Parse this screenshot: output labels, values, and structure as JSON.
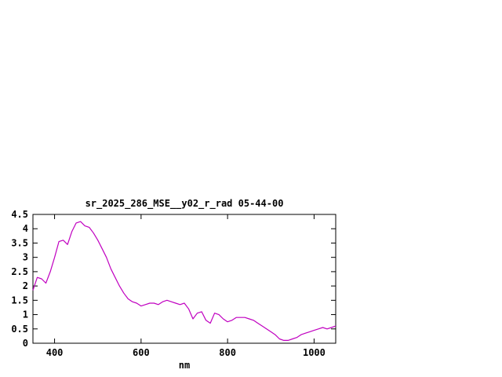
{
  "chart": {
    "title": "sr_2025_286_MSE__y02_r_rad 05-44-00",
    "xlabel": "nm"
  },
  "chart_data": {
    "type": "line",
    "title": "sr_2025_286_MSE__y02_r_rad 05-44-00",
    "xlabel": "nm",
    "ylabel": "",
    "x_range": [
      350,
      1050
    ],
    "y_range": [
      0,
      4.5
    ],
    "x_ticks": [
      400,
      600,
      800,
      1000
    ],
    "y_ticks": [
      0,
      0.5,
      1,
      1.5,
      2,
      2.5,
      3,
      3.5,
      4,
      4.5
    ],
    "grid": false,
    "legend": "none",
    "series": [
      {
        "name": "sr_2025_286_MSE__y02_r_rad",
        "color": "#c000c0",
        "x": [
          350,
          360,
          370,
          380,
          390,
          400,
          410,
          420,
          430,
          440,
          450,
          460,
          470,
          480,
          490,
          500,
          510,
          520,
          530,
          540,
          550,
          560,
          570,
          580,
          590,
          600,
          610,
          620,
          630,
          640,
          650,
          660,
          670,
          680,
          690,
          700,
          710,
          720,
          730,
          740,
          750,
          760,
          770,
          780,
          790,
          800,
          810,
          820,
          830,
          840,
          850,
          860,
          870,
          880,
          890,
          900,
          910,
          920,
          930,
          940,
          950,
          960,
          970,
          980,
          990,
          1000,
          1010,
          1020,
          1030,
          1040,
          1050
        ],
        "y": [
          1.85,
          2.3,
          2.25,
          2.1,
          2.5,
          3.0,
          3.55,
          3.6,
          3.45,
          3.9,
          4.2,
          4.25,
          4.1,
          4.05,
          3.85,
          3.6,
          3.3,
          3.0,
          2.6,
          2.3,
          2.0,
          1.75,
          1.55,
          1.45,
          1.4,
          1.3,
          1.35,
          1.4,
          1.4,
          1.35,
          1.45,
          1.5,
          1.45,
          1.4,
          1.35,
          1.4,
          1.2,
          0.85,
          1.05,
          1.1,
          0.8,
          0.7,
          1.05,
          1.0,
          0.85,
          0.75,
          0.8,
          0.9,
          0.9,
          0.9,
          0.85,
          0.8,
          0.7,
          0.6,
          0.5,
          0.4,
          0.3,
          0.15,
          0.1,
          0.1,
          0.15,
          0.2,
          0.3,
          0.35,
          0.4,
          0.45,
          0.5,
          0.55,
          0.5,
          0.55,
          0.6
        ]
      }
    ]
  }
}
